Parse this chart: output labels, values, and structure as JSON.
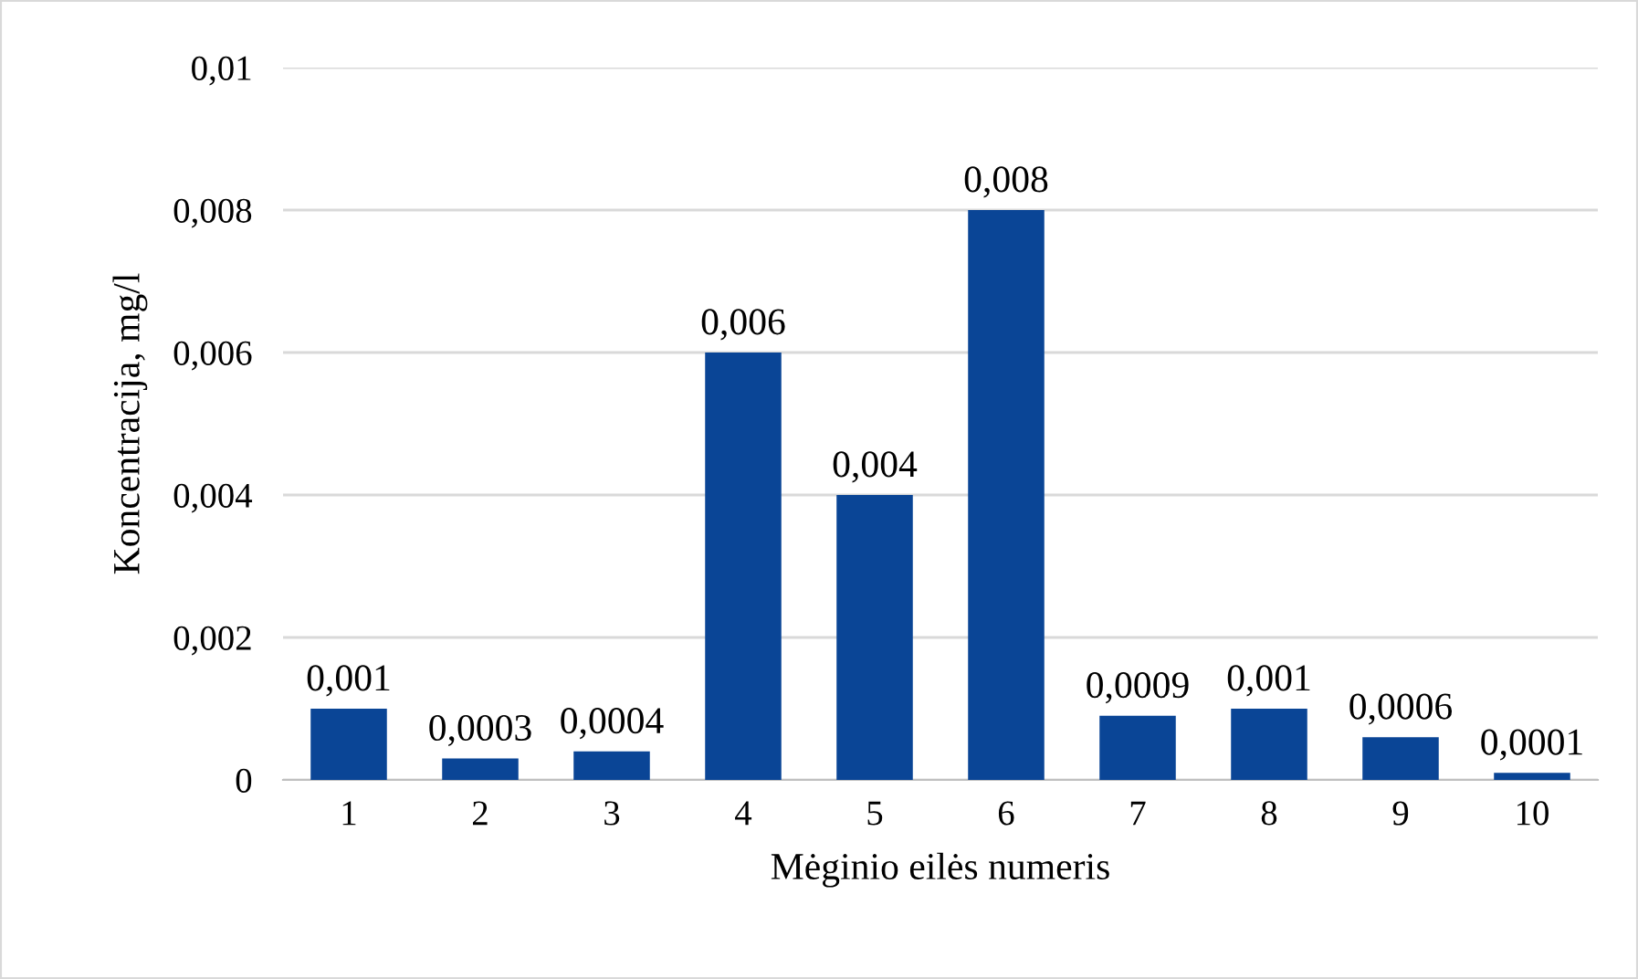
{
  "chart_data": {
    "type": "bar",
    "xlabel": "Mėginio eilės numeris",
    "ylabel": "Koncentracija, mg/l",
    "categories": [
      "1",
      "2",
      "3",
      "4",
      "5",
      "6",
      "7",
      "8",
      "9",
      "10"
    ],
    "values": [
      0.001,
      0.0003,
      0.0004,
      0.006,
      0.004,
      0.008,
      0.0009,
      0.001,
      0.0006,
      0.0001
    ],
    "value_labels": [
      "0,001",
      "0,0003",
      "0,0004",
      "0,006",
      "0,004",
      "0,008",
      "0,0009",
      "0,001",
      "0,0006",
      "0,0001"
    ],
    "color": "#0a4596",
    "ylim": [
      0,
      0.01
    ],
    "yticks": [
      0,
      {
        "value": 0.002,
        "label": "0,002"
      },
      {
        "value": 0.004,
        "label": "0,004"
      },
      {
        "value": 0.006,
        "label": "0,006"
      },
      {
        "value": 0.008,
        "label": "0,008"
      },
      {
        "value": 0.01,
        "label": "0,01"
      }
    ],
    "grid": "y",
    "legend": false
  }
}
